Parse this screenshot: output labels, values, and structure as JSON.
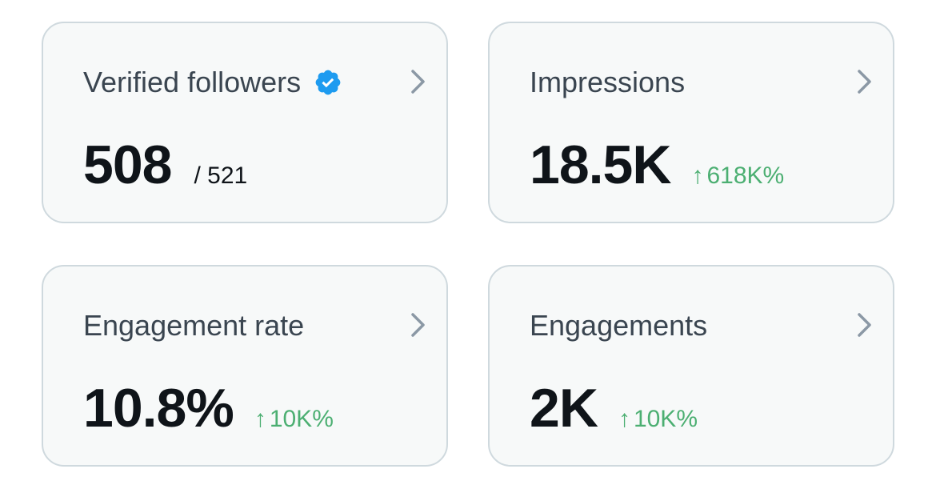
{
  "colors": {
    "card_background": "#f7f9f9",
    "card_border": "#cfd9de",
    "title_text": "#3a4550",
    "value_text": "#0f1419",
    "delta_positive": "#4caf72",
    "verified_badge": "#1d9bf0",
    "chevron": "#8b98a5"
  },
  "cards": [
    {
      "title": "Verified followers",
      "icon": "verified-badge-icon",
      "value": "508",
      "secondary": "/ 521"
    },
    {
      "title": "Impressions",
      "value": "18.5K",
      "delta": "618K%",
      "delta_direction": "up"
    },
    {
      "title": "Engagement rate",
      "value": "10.8%",
      "delta": "10K%",
      "delta_direction": "up"
    },
    {
      "title": "Engagements",
      "value": "2K",
      "delta": "10K%",
      "delta_direction": "up"
    }
  ],
  "icons": {
    "chevron": "chevron-right-icon",
    "delta_arrow": "arrow-up-icon",
    "delta_arrow_glyph": "↑"
  }
}
